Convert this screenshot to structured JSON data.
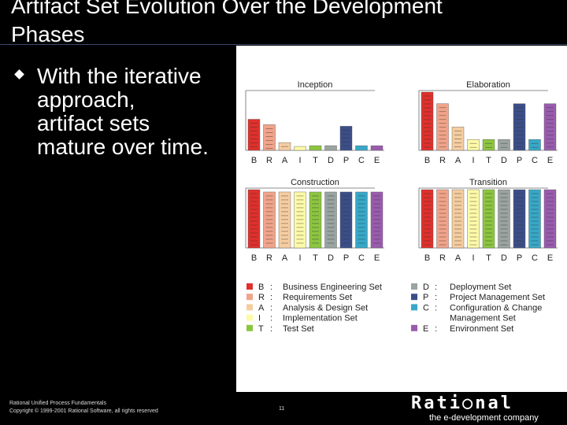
{
  "slide": {
    "title": "Artifact Set Evolution Over the Development Phases",
    "bullet": "With the iterative\napproach,\nartifact sets\nmature over time.",
    "footer_line1": "Rational Unified Process Fundamentals",
    "footer_line2": "Copyright © 1999-2001 Rational Software, all rights reserved",
    "page_number": "11",
    "logo_text": "Rati○nal",
    "logo_tagline": "the e-development company"
  },
  "colors": {
    "B": "#e0302c",
    "R": "#f1a48a",
    "A": "#f6cda0",
    "I": "#fdfaa8",
    "T": "#8cc63f",
    "D": "#9aa4a0",
    "P": "#3c4e88",
    "C": "#38a8c8",
    "E": "#9a5cae"
  },
  "chart_data": [
    {
      "type": "bar",
      "title": "Inception",
      "categories": [
        "B",
        "R",
        "A",
        "I",
        "T",
        "D",
        "P",
        "C",
        "E"
      ],
      "values": [
        40,
        33,
        10,
        5,
        6,
        6,
        31,
        6,
        6
      ],
      "ylim": [
        0,
        75
      ]
    },
    {
      "type": "bar",
      "title": "Elaboration",
      "categories": [
        "B",
        "R",
        "A",
        "I",
        "T",
        "D",
        "P",
        "C",
        "E"
      ],
      "values": [
        75,
        60,
        30,
        14,
        14,
        14,
        60,
        14,
        60
      ],
      "ylim": [
        0,
        75
      ]
    },
    {
      "type": "bar",
      "title": "Construction",
      "categories": [
        "B",
        "R",
        "A",
        "I",
        "T",
        "D",
        "P",
        "C",
        "E"
      ],
      "values": [
        75,
        72,
        72,
        72,
        72,
        72,
        72,
        72,
        72
      ],
      "ylim": [
        0,
        75
      ]
    },
    {
      "type": "bar",
      "title": "Transition",
      "categories": [
        "B",
        "R",
        "A",
        "I",
        "T",
        "D",
        "P",
        "C",
        "E"
      ],
      "values": [
        75,
        75,
        75,
        75,
        75,
        75,
        75,
        75,
        75
      ],
      "ylim": [
        0,
        75
      ]
    }
  ],
  "legend": {
    "left": [
      {
        "key": "B",
        "label": "Business Engineering Set"
      },
      {
        "key": "R",
        "label": "Requirements Set"
      },
      {
        "key": "A",
        "label": "Analysis & Design Set"
      },
      {
        "key": "I",
        "label": "Implementation Set"
      },
      {
        "key": "T",
        "label": "Test Set"
      }
    ],
    "right": [
      {
        "key": "D",
        "label": "Deployment Set"
      },
      {
        "key": "P",
        "label": "Project Management Set"
      },
      {
        "key": "C",
        "label": "Configuration & Change Management Set"
      },
      {
        "key": "E",
        "label": "Environment Set"
      }
    ]
  }
}
